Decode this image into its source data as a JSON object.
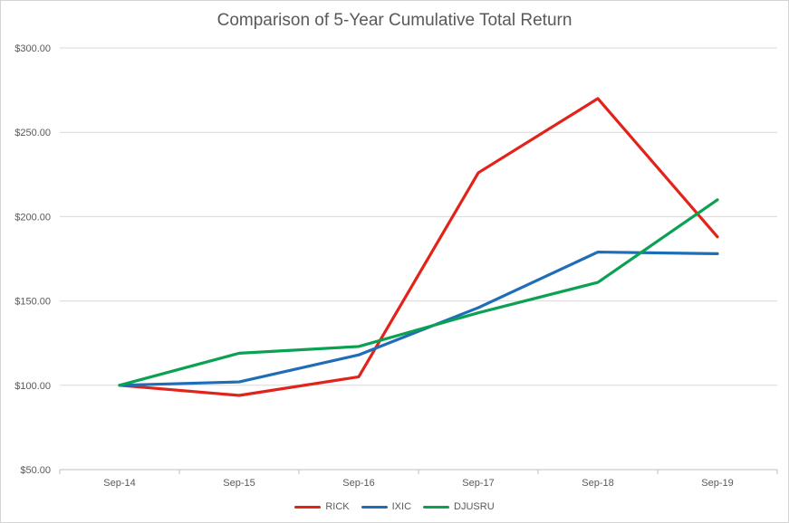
{
  "chart_data": {
    "type": "line",
    "title": "Comparison of 5-Year Cumulative Total Return",
    "categories": [
      "Sep-14",
      "Sep-15",
      "Sep-16",
      "Sep-17",
      "Sep-18",
      "Sep-19"
    ],
    "series": [
      {
        "name": "RICK",
        "color": "#e2231a",
        "values": [
          100,
          94,
          105,
          226,
          270,
          188
        ]
      },
      {
        "name": "IXIC",
        "color": "#1e6db6",
        "values": [
          100,
          102,
          118,
          146,
          179,
          178
        ]
      },
      {
        "name": "DJUSRU",
        "color": "#0ba153",
        "values": [
          100,
          119,
          123,
          143,
          161,
          210
        ]
      }
    ],
    "ylim": [
      50,
      300
    ],
    "ytick_step": 50,
    "ytick_labels": [
      "$50.00",
      "$100.00",
      "$150.00",
      "$200.00",
      "$250.00",
      "$300.00"
    ],
    "xlabel": "",
    "ylabel": "",
    "grid": true,
    "legend_position": "bottom",
    "colors": {
      "text": "#595959",
      "gridline": "#d9d9d9",
      "axis": "#bfbfbf",
      "background": "#ffffff",
      "border": "#d4d4d4"
    }
  }
}
